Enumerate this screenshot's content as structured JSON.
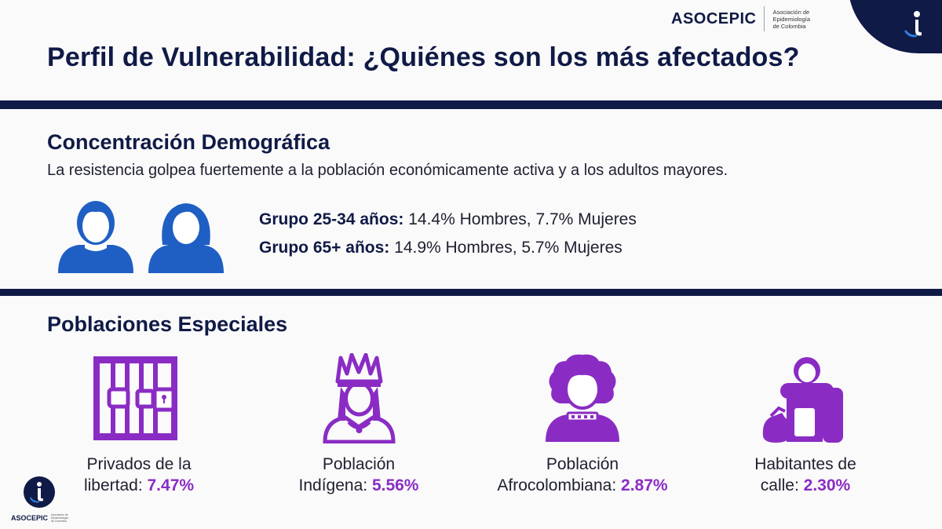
{
  "brand": {
    "name": "ASOCEPIC",
    "subtitle_lines": [
      "Asociación de",
      "Epidemiología",
      "de Colombia"
    ]
  },
  "title": "Perfil de Vulnerabilidad: ¿Quiénes son los más afectados?",
  "demographics": {
    "heading": "Concentración Demográfica",
    "subtitle": "La resistencia golpea fuertemente a la población económicamente activa y a los adultos mayores.",
    "groups": [
      {
        "label": "Grupo 25-34 años:",
        "value": "14.4% Hombres, 7.7% Mujeres"
      },
      {
        "label": "Grupo 65+ años:",
        "value": "14.9% Hombres, 5.7% Mujeres"
      }
    ]
  },
  "special": {
    "heading": "Poblaciones Especiales",
    "items": [
      {
        "icon": "prison-bars-icon",
        "line1": "Privados de la",
        "line2": "libertad:",
        "pct": "7.47%"
      },
      {
        "icon": "indigenous-person-icon",
        "line1": "Población",
        "line2": "Indígena:",
        "pct": "5.56%"
      },
      {
        "icon": "afro-person-icon",
        "line1": "Población",
        "line2": "Afrocolombiana:",
        "pct": "2.87%"
      },
      {
        "icon": "homeless-person-icon",
        "line1": "Habitantes de",
        "line2": "calle:",
        "pct": "2.30%"
      }
    ]
  },
  "colors": {
    "navy": "#101a46",
    "blue": "#1f5fc4",
    "purple": "#8a2cc4"
  }
}
